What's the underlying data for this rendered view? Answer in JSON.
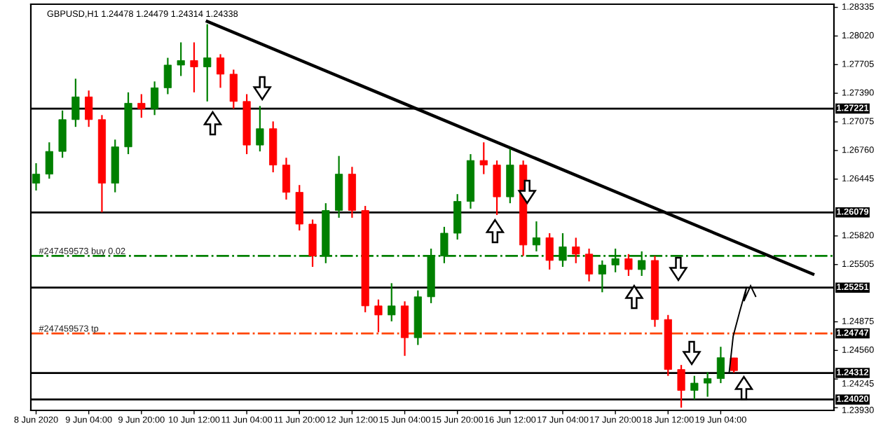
{
  "chart_data": {
    "type": "candlestick",
    "title": "GBPUSD,H1 1.24478 1.24479 1.24314 1.24338",
    "categories": [
      "8 Jun 2020",
      null,
      null,
      null,
      "9 Jun 04:00",
      null,
      null,
      null,
      "9 Jun 20:00",
      null,
      null,
      null,
      "10 Jun 12:00",
      null,
      null,
      null,
      "11 Jun 04:00",
      null,
      null,
      null,
      "11 Jun 20:00",
      null,
      null,
      null,
      "12 Jun 12:00",
      null,
      null,
      null,
      "15 Jun 04:00",
      null,
      null,
      null,
      "15 Jun 20:00",
      null,
      null,
      null,
      "16 Jun 12:00",
      null,
      null,
      null,
      "17 Jun 04:00",
      null,
      null,
      null,
      "17 Jun 20:00",
      null,
      null,
      null,
      "18 Jun 12:00",
      null,
      null,
      null,
      "19 Jun 04:00",
      null,
      null,
      null,
      null,
      null,
      null,
      null,
      null
    ],
    "ohlc": [
      [
        1.264,
        1.2662,
        1.2632,
        1.265
      ],
      [
        1.265,
        1.2685,
        1.2645,
        1.2675
      ],
      [
        1.2675,
        1.272,
        1.2668,
        1.271
      ],
      [
        1.271,
        1.2755,
        1.2702,
        1.2735
      ],
      [
        1.2735,
        1.2742,
        1.2702,
        1.271
      ],
      [
        1.271,
        1.2715,
        1.2608,
        1.264
      ],
      [
        1.264,
        1.2688,
        1.263,
        1.268
      ],
      [
        1.268,
        1.274,
        1.2672,
        1.2728
      ],
      [
        1.2728,
        1.2738,
        1.2712,
        1.2722
      ],
      [
        1.2722,
        1.2752,
        1.2715,
        1.2745
      ],
      [
        1.2745,
        1.2778,
        1.2738,
        1.277
      ],
      [
        1.277,
        1.2795,
        1.2758,
        1.2775
      ],
      [
        1.2775,
        1.2795,
        1.274,
        1.2768
      ],
      [
        1.2768,
        1.2815,
        1.273,
        1.2778
      ],
      [
        1.2778,
        1.2782,
        1.2745,
        1.276
      ],
      [
        1.276,
        1.2765,
        1.2722,
        1.273
      ],
      [
        1.273,
        1.2738,
        1.2672,
        1.2682
      ],
      [
        1.2682,
        1.2725,
        1.2675,
        1.27
      ],
      [
        1.27,
        1.2708,
        1.2652,
        1.266
      ],
      [
        1.266,
        1.2668,
        1.2622,
        1.263
      ],
      [
        1.263,
        1.2638,
        1.2588,
        1.2595
      ],
      [
        1.2595,
        1.26,
        1.2548,
        1.256
      ],
      [
        1.256,
        1.2618,
        1.2552,
        1.261
      ],
      [
        1.261,
        1.267,
        1.2602,
        1.265
      ],
      [
        1.265,
        1.2658,
        1.2602,
        1.261
      ],
      [
        1.261,
        1.2615,
        1.2498,
        1.2505
      ],
      [
        1.2505,
        1.2512,
        1.2476,
        1.2495
      ],
      [
        1.2495,
        1.253,
        1.2488,
        1.2505
      ],
      [
        1.2505,
        1.251,
        1.245,
        1.247
      ],
      [
        1.247,
        1.2522,
        1.2462,
        1.2515
      ],
      [
        1.2515,
        1.2568,
        1.2508,
        1.256
      ],
      [
        1.256,
        1.2592,
        1.2552,
        1.2585
      ],
      [
        1.2585,
        1.2628,
        1.2578,
        1.262
      ],
      [
        1.262,
        1.2672,
        1.2612,
        1.2665
      ],
      [
        1.2665,
        1.2685,
        1.265,
        1.266
      ],
      [
        1.266,
        1.2665,
        1.2605,
        1.2625
      ],
      [
        1.2625,
        1.2678,
        1.2618,
        1.266
      ],
      [
        1.266,
        1.2665,
        1.256,
        1.2572
      ],
      [
        1.2572,
        1.2598,
        1.2565,
        1.258
      ],
      [
        1.258,
        1.2585,
        1.2545,
        1.2555
      ],
      [
        1.2555,
        1.2585,
        1.2548,
        1.257
      ],
      [
        1.257,
        1.258,
        1.2552,
        1.2562
      ],
      [
        1.2562,
        1.2568,
        1.2532,
        1.254
      ],
      [
        1.254,
        1.2555,
        1.252,
        1.255
      ],
      [
        1.255,
        1.2568,
        1.2542,
        1.2557
      ],
      [
        1.2557,
        1.2562,
        1.2538,
        1.2545
      ],
      [
        1.2545,
        1.2565,
        1.2538,
        1.2555
      ],
      [
        1.2555,
        1.256,
        1.2482,
        1.249
      ],
      [
        1.249,
        1.2495,
        1.2428,
        1.2435
      ],
      [
        1.2435,
        1.244,
        1.2393,
        1.2412
      ],
      [
        1.2412,
        1.2428,
        1.2402,
        1.242
      ],
      [
        1.242,
        1.2432,
        1.2405,
        1.2425
      ],
      [
        1.2425,
        1.246,
        1.242,
        1.2448
      ],
      [
        1.24478,
        1.24479,
        1.24314,
        1.24338
      ],
      null,
      null,
      null,
      null,
      null,
      null,
      null
    ],
    "series": [
      {
        "type": "line",
        "color": "#000000",
        "values": [
          null,
          null,
          null,
          null,
          null,
          null,
          null,
          null,
          null,
          null,
          null,
          null,
          null,
          1.2818,
          null,
          null,
          null,
          null,
          null,
          null,
          null,
          null,
          null,
          null,
          null,
          null,
          null,
          null,
          null,
          null,
          null,
          null,
          null,
          null,
          null,
          null,
          null,
          null,
          null,
          null,
          null,
          null,
          null,
          null,
          null,
          null,
          null,
          null,
          null,
          null,
          null,
          null,
          null,
          null,
          null,
          null,
          null,
          null,
          null,
          1.254,
          null
        ]
      }
    ],
    "ylim": [
      1.239,
      1.2837
    ],
    "yticks": [
      {
        "value": 1.28335,
        "label": "1.28335"
      },
      {
        "value": 1.2802,
        "label": "1.28020"
      },
      {
        "value": 1.27705,
        "label": "1.27705"
      },
      {
        "value": 1.2739,
        "label": "1.27390"
      },
      {
        "value": 1.27075,
        "label": "1.27075"
      },
      {
        "value": 1.2676,
        "label": "1.26760"
      },
      {
        "value": 1.26445,
        "label": "1.26445"
      },
      {
        "value": 1.2582,
        "label": "1.25820"
      },
      {
        "value": 1.25505,
        "label": "1.25505"
      },
      {
        "value": 1.24875,
        "label": "1.24875"
      },
      {
        "value": 1.2456,
        "label": "1.24560"
      },
      {
        "value": 1.24245,
        "label": "1.24245"
      },
      {
        "value": 1.2393,
        "label": "1.23930"
      }
    ],
    "ref_lines": [
      {
        "axis": "y",
        "value": 1.27221,
        "label": "1.27221",
        "color": "#000000",
        "line_style": "solid"
      },
      {
        "axis": "y",
        "value": 1.26079,
        "label": "1.26079",
        "color": "#000000",
        "line_style": "solid"
      },
      {
        "axis": "y",
        "value": 1.256,
        "color": "#008000",
        "line_style": "dashed"
      },
      {
        "axis": "y",
        "value": 1.25251,
        "label": "1.25251",
        "color": "#000000",
        "line_style": "solid"
      },
      {
        "axis": "y",
        "value": 1.24747,
        "label": "1.24747",
        "color": "#ff4500",
        "line_style": "dashed"
      },
      {
        "axis": "y",
        "value": 1.24312,
        "label": "1.24312",
        "color": "#000000",
        "line_style": "solid"
      },
      {
        "axis": "y",
        "value": 1.2402,
        "label": "1.24020",
        "color": "#000000",
        "line_style": "solid"
      }
    ],
    "annotations": [
      {
        "text": "#247459573 buy 0.02",
        "y": 1.256
      },
      {
        "text": "#247459573 tp",
        "y": 1.24747
      }
    ],
    "grid": false
  }
}
